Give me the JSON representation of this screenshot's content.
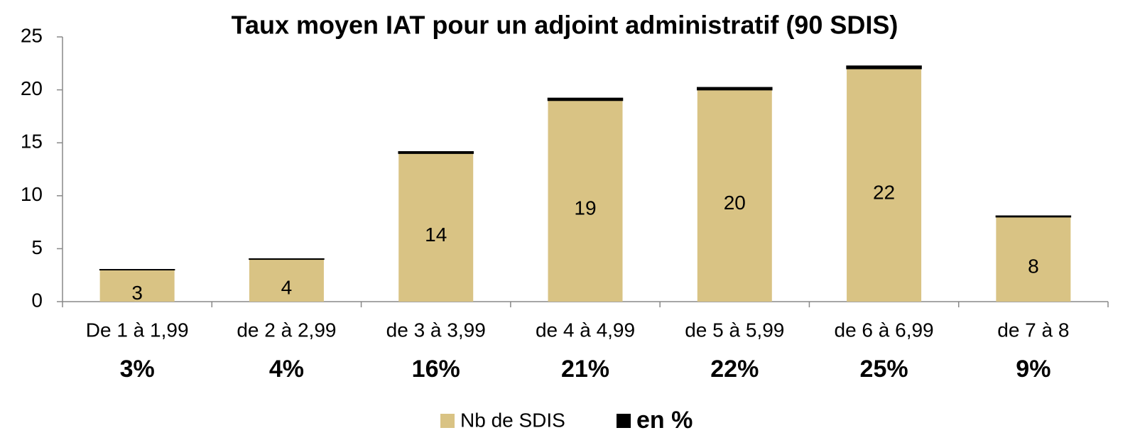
{
  "chart_data": {
    "type": "stacked_bar",
    "title": "Taux moyen IAT pour un adjoint administratif (90 SDIS)",
    "categories": [
      "De 1 à 1,99",
      "de 2 à 2,99",
      "de 3 à 3,99",
      "de 4 à 4,99",
      "de 5 à 5,99",
      "de 6 à 6,99",
      "de 7 à 8"
    ],
    "series": [
      {
        "name": "Nb de SDIS",
        "color": "#d9c384",
        "values": [
          3,
          4,
          14,
          19,
          20,
          22,
          8
        ]
      },
      {
        "name": "en %",
        "color": "#000000",
        "values": [
          0.03,
          0.04,
          0.16,
          0.21,
          0.22,
          0.25,
          0.09
        ],
        "value_labels": [
          "3%",
          "4%",
          "16%",
          "21%",
          "22%",
          "25%",
          "9%"
        ]
      }
    ],
    "ylim": [
      0,
      25
    ],
    "yticks": [
      0,
      5,
      10,
      15,
      20,
      25
    ],
    "grid": false
  }
}
